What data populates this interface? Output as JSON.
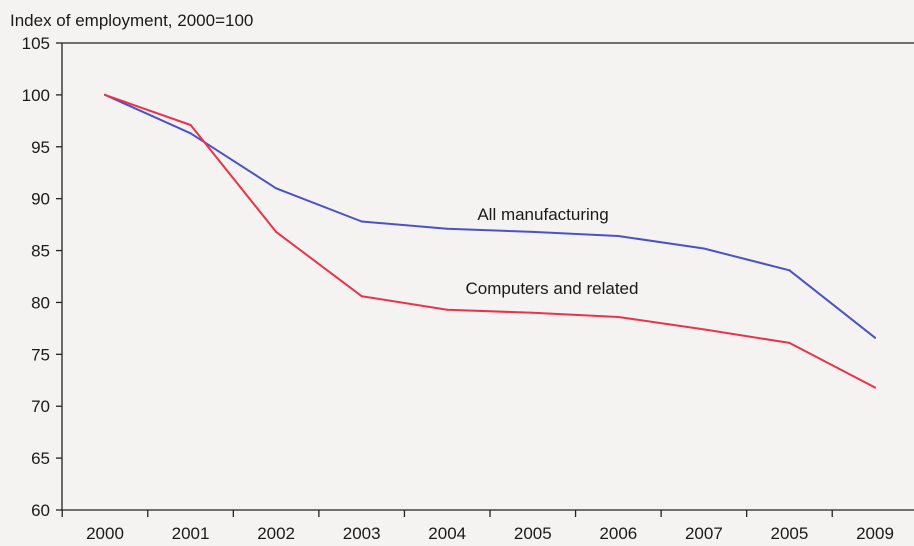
{
  "chart_data": {
    "type": "line",
    "ylabel": "Index of employment, 2000=100",
    "xlabel": "",
    "categories": [
      "2000",
      "2001",
      "2002",
      "2003",
      "2004",
      "2005",
      "2006",
      "2007",
      "2005",
      "2009"
    ],
    "ylim": [
      60,
      105
    ],
    "yticks": [
      60,
      65,
      70,
      75,
      80,
      85,
      90,
      95,
      100,
      105
    ],
    "grid": false,
    "legend": "none",
    "series": [
      {
        "name": "All manufacturing",
        "color": "#4a52c8",
        "values": [
          100,
          96.3,
          91,
          87.8,
          87.1,
          86.8,
          86.4,
          85.2,
          83.1,
          76.6
        ]
      },
      {
        "name": "Computers and related",
        "color": "#e8344a",
        "values": [
          100,
          97.1,
          86.8,
          80.6,
          79.3,
          79,
          78.6,
          77.4,
          76.1,
          71.8
        ]
      }
    ]
  }
}
